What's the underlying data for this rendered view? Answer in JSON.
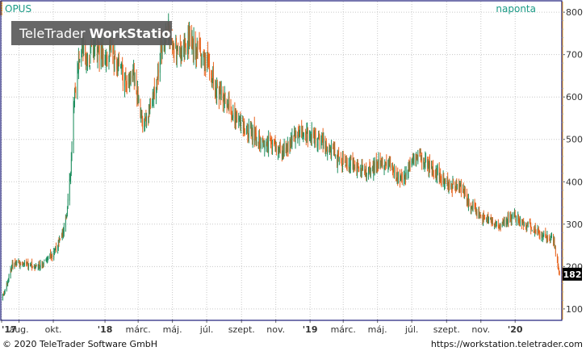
{
  "header": {
    "symbol": "OPUS",
    "interval": "naponta",
    "brand_light": "TeleTrader ",
    "brand_bold": "WorkStation"
  },
  "footer": {
    "copyright": "© 2020 TeleTrader Software GmbH",
    "url": "https://workstation.teletrader.com"
  },
  "colors": {
    "up": "#1f8f5f",
    "down": "#e8641e",
    "axis_accent": "#1a9a86",
    "frame": "#1c1c7a",
    "grid": "#c8c8c8",
    "last_badge": "#000000",
    "watermark": "#5a5a5a",
    "accent_bar": "#f0a020"
  },
  "chart_data": {
    "type": "candlestick",
    "title": "",
    "y_ticks": [
      "100",
      "200",
      "300",
      "400",
      "500",
      "600",
      "700",
      "800"
    ],
    "y_tick_values": [
      100,
      200,
      300,
      400,
      500,
      600,
      700,
      800
    ],
    "ylim": [
      75,
      825
    ],
    "x_tick_labels": [
      "'17",
      "aug.",
      "okt.",
      "'18",
      "márc.",
      "máj.",
      "júl.",
      "szept.",
      "nov.",
      "'19",
      "márc.",
      "máj.",
      "júl.",
      "szept.",
      "nov.",
      "'20"
    ],
    "x_tick_dates": [
      "2017-07-01",
      "2017-08-01",
      "2017-10-01",
      "2018-01-01",
      "2018-03-01",
      "2018-05-01",
      "2018-07-01",
      "2018-09-01",
      "2018-11-01",
      "2019-01-01",
      "2019-03-01",
      "2019-05-01",
      "2019-07-01",
      "2019-09-01",
      "2019-11-01",
      "2020-01-01"
    ],
    "xlim": [
      "2017-07-01",
      "2020-03-24"
    ],
    "last_value": "182",
    "series": [
      {
        "x": [
          "2017-07-01",
          "2017-07-10",
          "2017-07-20",
          "2017-08-01",
          "2017-08-15",
          "2017-09-01",
          "2017-09-15",
          "2017-10-01",
          "2017-10-15",
          "2017-10-25",
          "2017-11-01",
          "2017-11-05",
          "2017-11-10",
          "2017-11-15",
          "2017-11-20",
          "2017-11-25",
          "2017-12-01",
          "2017-12-10",
          "2017-12-20",
          "2018-01-01",
          "2018-01-10",
          "2018-01-20",
          "2018-02-01",
          "2018-02-10",
          "2018-02-20",
          "2018-03-01",
          "2018-03-10",
          "2018-03-20",
          "2018-04-01",
          "2018-04-10",
          "2018-04-18",
          "2018-04-25",
          "2018-05-01",
          "2018-05-10",
          "2018-05-20",
          "2018-06-01",
          "2018-06-15",
          "2018-07-01",
          "2018-07-10",
          "2018-07-20",
          "2018-08-01",
          "2018-08-15",
          "2018-09-01",
          "2018-09-15",
          "2018-10-01",
          "2018-10-15",
          "2018-11-01",
          "2018-11-15",
          "2018-12-01",
          "2018-12-15",
          "2019-01-01",
          "2019-01-15",
          "2019-02-01",
          "2019-02-15",
          "2019-03-01",
          "2019-03-15",
          "2019-04-01",
          "2019-04-15",
          "2019-05-01",
          "2019-05-15",
          "2019-06-01",
          "2019-06-15",
          "2019-07-01",
          "2019-07-15",
          "2019-08-01",
          "2019-08-15",
          "2019-09-01",
          "2019-09-15",
          "2019-10-01",
          "2019-10-15",
          "2019-11-01",
          "2019-11-15",
          "2019-12-01",
          "2019-12-15",
          "2020-01-01",
          "2020-01-15",
          "2020-02-01",
          "2020-02-15",
          "2020-03-01",
          "2020-03-10",
          "2020-03-20"
        ],
        "close": [
          120,
          160,
          205,
          210,
          205,
          200,
          210,
          230,
          270,
          330,
          420,
          560,
          620,
          690,
          720,
          700,
          680,
          720,
          710,
          700,
          720,
          680,
          650,
          620,
          660,
          600,
          520,
          560,
          620,
          700,
          740,
          760,
          720,
          700,
          720,
          740,
          700,
          680,
          650,
          620,
          600,
          560,
          540,
          520,
          500,
          490,
          480,
          470,
          500,
          520,
          510,
          500,
          480,
          460,
          450,
          440,
          430,
          420,
          440,
          450,
          420,
          400,
          440,
          460,
          430,
          420,
          400,
          390,
          380,
          340,
          320,
          310,
          300,
          310,
          320,
          300,
          290,
          280,
          270,
          260,
          182
        ]
      }
    ]
  }
}
